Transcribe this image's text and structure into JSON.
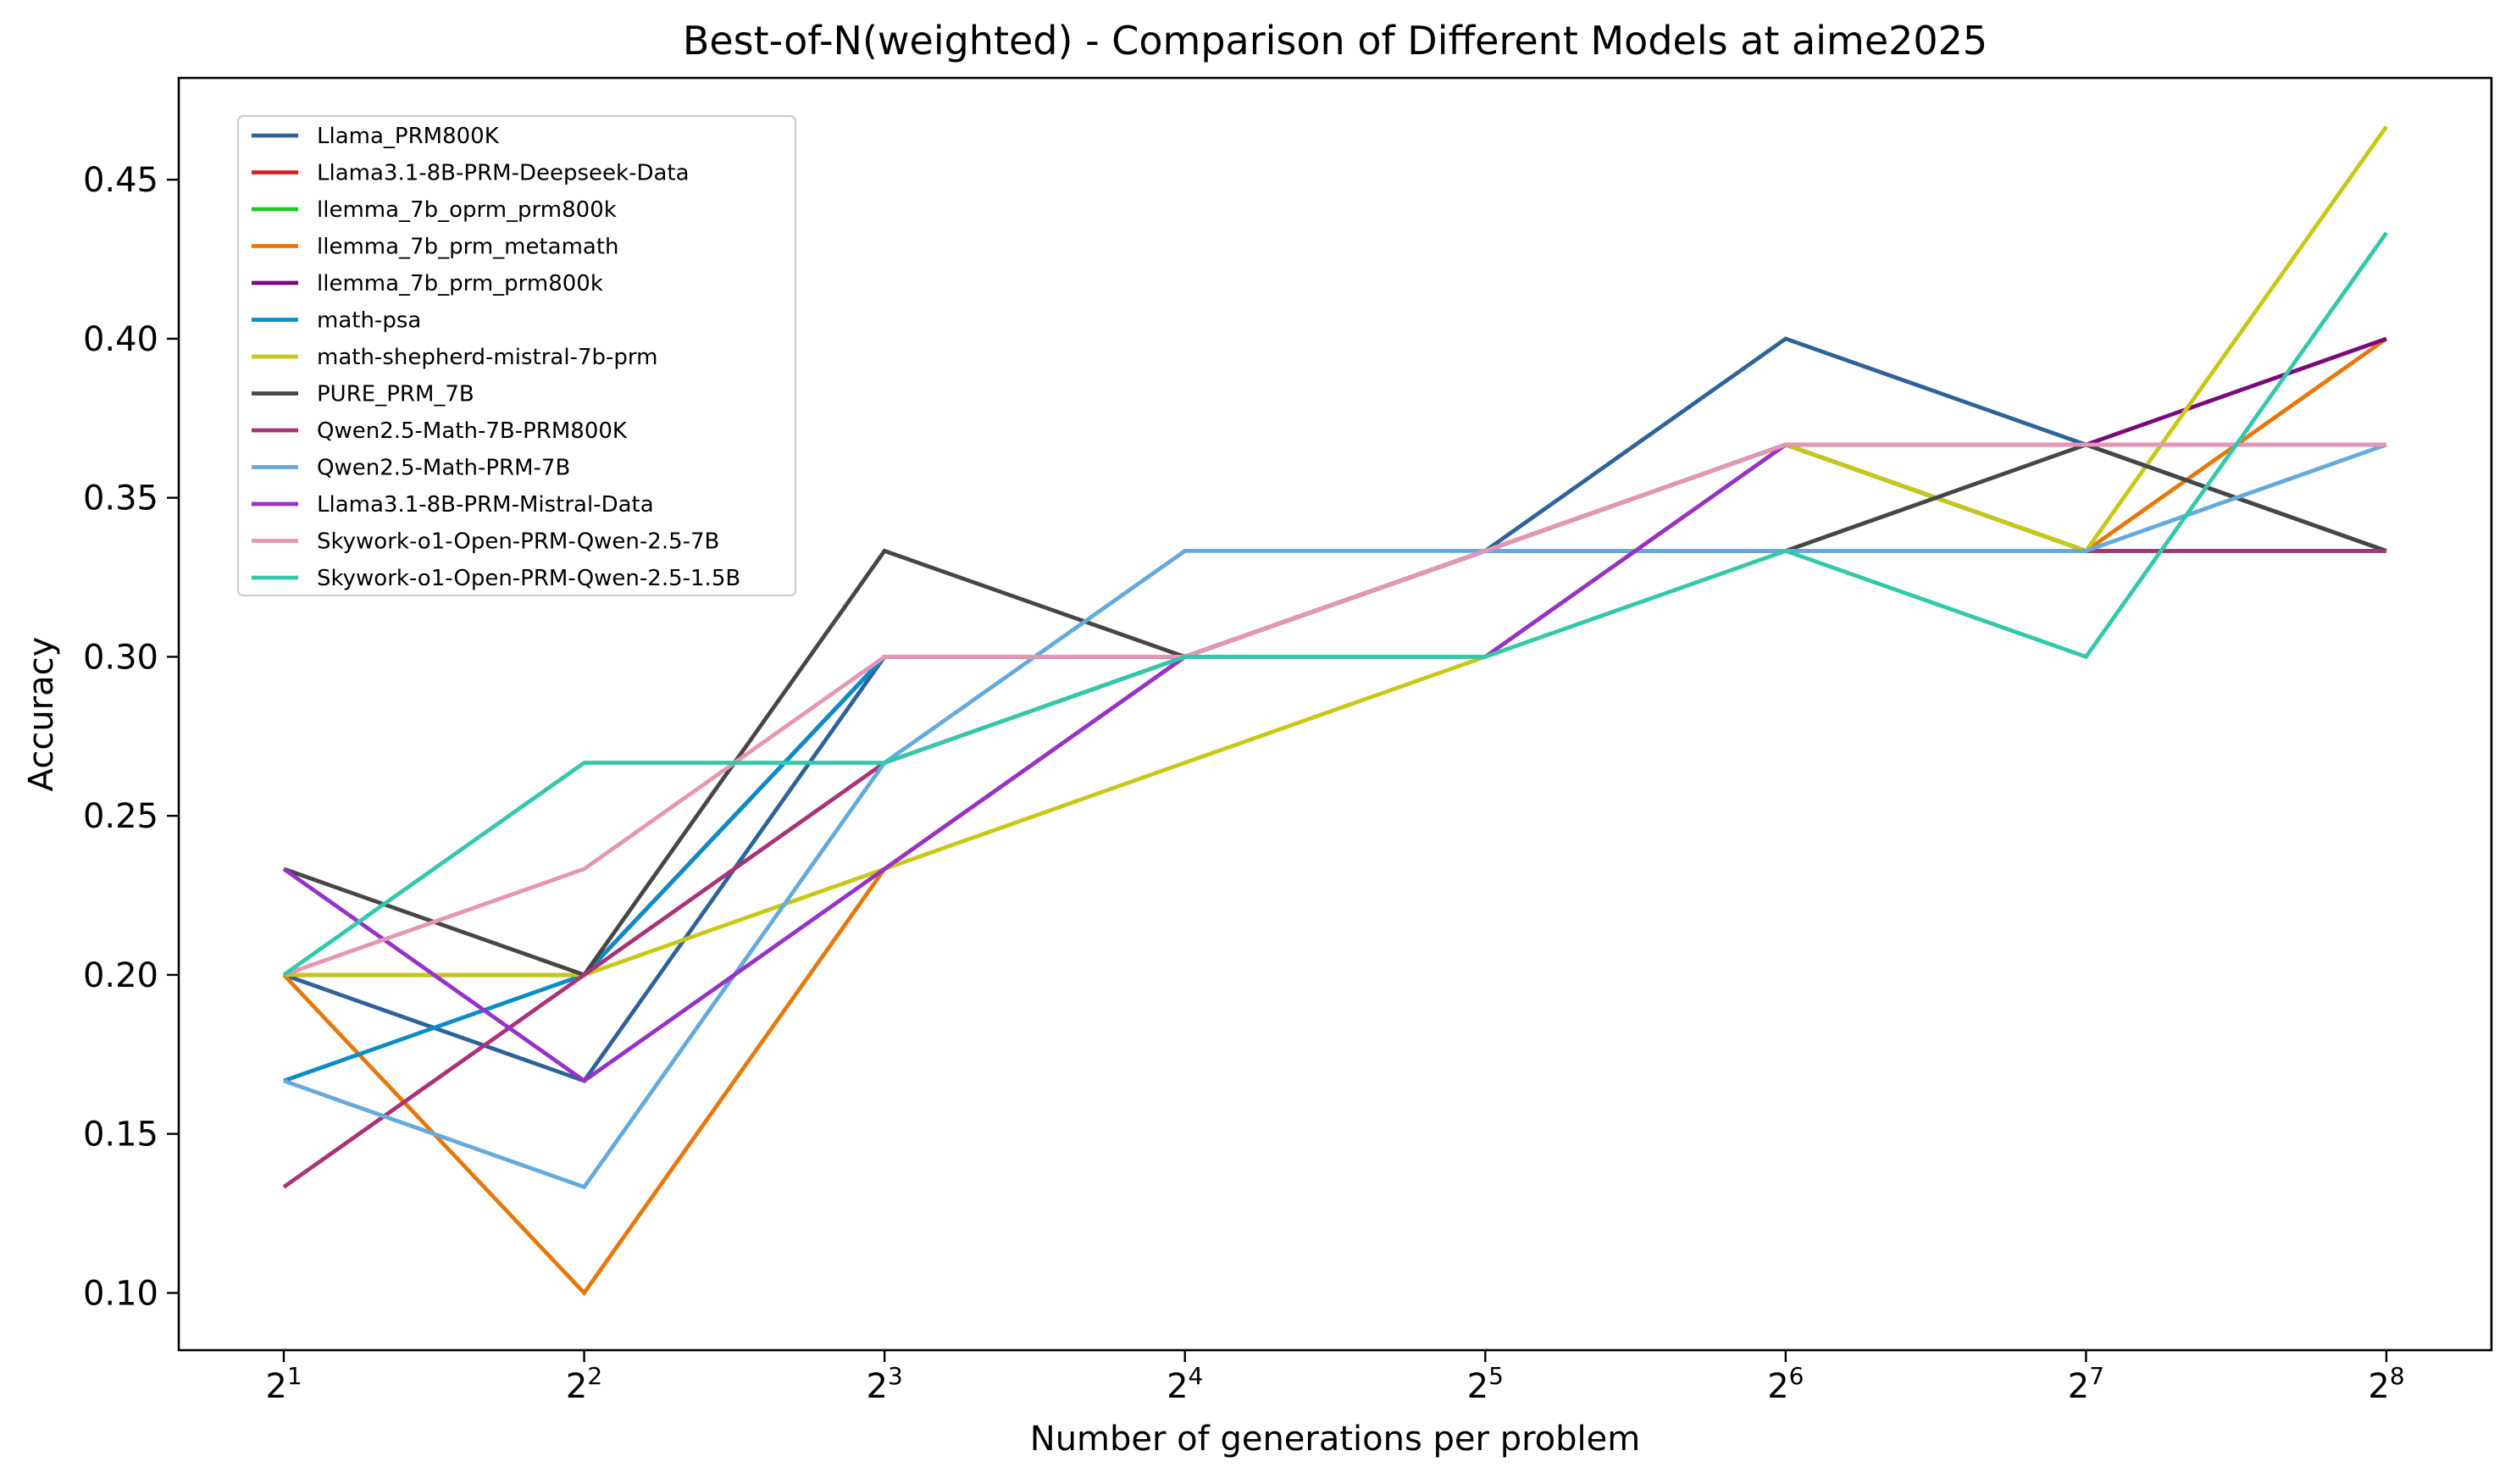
{
  "chart_data": {
    "type": "line",
    "title": "Best-of-N(weighted) - Comparison of Different Models at aime2025",
    "xlabel": "Number of generations per problem",
    "ylabel": "Accuracy",
    "x_scale": "log2",
    "x": [
      2,
      4,
      8,
      16,
      32,
      64,
      128,
      256
    ],
    "x_tick_labels": [
      {
        "base": "2",
        "exp": "1"
      },
      {
        "base": "2",
        "exp": "2"
      },
      {
        "base": "2",
        "exp": "3"
      },
      {
        "base": "2",
        "exp": "4"
      },
      {
        "base": "2",
        "exp": "5"
      },
      {
        "base": "2",
        "exp": "6"
      },
      {
        "base": "2",
        "exp": "7"
      },
      {
        "base": "2",
        "exp": "8"
      }
    ],
    "y_ticks": [
      "0.10",
      "0.15",
      "0.20",
      "0.25",
      "0.30",
      "0.35",
      "0.40",
      "0.45"
    ],
    "ylim": [
      0.082,
      0.482
    ],
    "grid": false,
    "legend_position": "top-left",
    "series": [
      {
        "name": "Llama_PRM800K",
        "color": "#2d6399",
        "values": [
          0.2,
          0.1667,
          0.3,
          0.3,
          0.3333,
          0.4,
          0.3667,
          0.3333
        ]
      },
      {
        "name": "Llama3.1-8B-PRM-Deepseek-Data",
        "color": "#d62020",
        "values": [
          0.2,
          0.2,
          0.3,
          0.3,
          0.3333,
          0.3667,
          0.3333,
          0.3333
        ]
      },
      {
        "name": "llemma_7b_oprm_prm800k",
        "color": "#1ec81e",
        "values": [
          0.2,
          0.2,
          0.3,
          0.3,
          0.3333,
          0.3667,
          0.3333,
          0.3333
        ]
      },
      {
        "name": "llemma_7b_prm_metamath",
        "color": "#e6780a",
        "values": [
          0.2,
          0.1,
          0.2333,
          0.3,
          0.3333,
          0.3667,
          0.3333,
          0.4
        ]
      },
      {
        "name": "llemma_7b_prm_prm800k",
        "color": "#7a0a7a",
        "values": [
          0.2,
          0.2,
          0.3,
          0.3,
          0.3333,
          0.3667,
          0.3667,
          0.4
        ]
      },
      {
        "name": "math-psa",
        "color": "#0a8cc8",
        "values": [
          0.1667,
          0.2,
          0.3,
          0.3,
          0.3333,
          0.3667,
          0.3333,
          0.3333
        ]
      },
      {
        "name": "math-shepherd-mistral-7b-prm",
        "color": "#c8c814",
        "values": [
          0.2,
          0.2,
          0.2333,
          0.2667,
          0.3,
          0.3667,
          0.3333,
          0.4667
        ]
      },
      {
        "name": "PURE_PRM_7B",
        "color": "#464646",
        "values": [
          0.2333,
          0.2,
          0.3333,
          0.3,
          0.3333,
          0.3333,
          0.3667,
          0.3333
        ]
      },
      {
        "name": "Qwen2.5-Math-7B-PRM800K",
        "color": "#aa3278",
        "values": [
          0.1333,
          0.2,
          0.2667,
          0.3,
          0.3333,
          0.3333,
          0.3333,
          0.3333
        ]
      },
      {
        "name": "Qwen2.5-Math-PRM-7B",
        "color": "#64aadc",
        "values": [
          0.1667,
          0.1333,
          0.2667,
          0.3333,
          0.3333,
          0.3333,
          0.3333,
          0.3667
        ]
      },
      {
        "name": "Llama3.1-8B-PRM-Mistral-Data",
        "color": "#9632c8",
        "values": [
          0.2333,
          0.1667,
          0.2333,
          0.3,
          0.3,
          0.3667,
          0.3667,
          0.3667
        ]
      },
      {
        "name": "Skywork-o1-Open-PRM-Qwen-2.5-7B",
        "color": "#e696b4",
        "values": [
          0.2,
          0.2333,
          0.3,
          0.3,
          0.3333,
          0.3667,
          0.3667,
          0.3667
        ]
      },
      {
        "name": "Skywork-o1-Open-PRM-Qwen-2.5-1.5B",
        "color": "#32c8aa",
        "values": [
          0.2,
          0.2667,
          0.2667,
          0.3,
          0.3,
          0.3333,
          0.3,
          0.4333
        ]
      }
    ]
  }
}
